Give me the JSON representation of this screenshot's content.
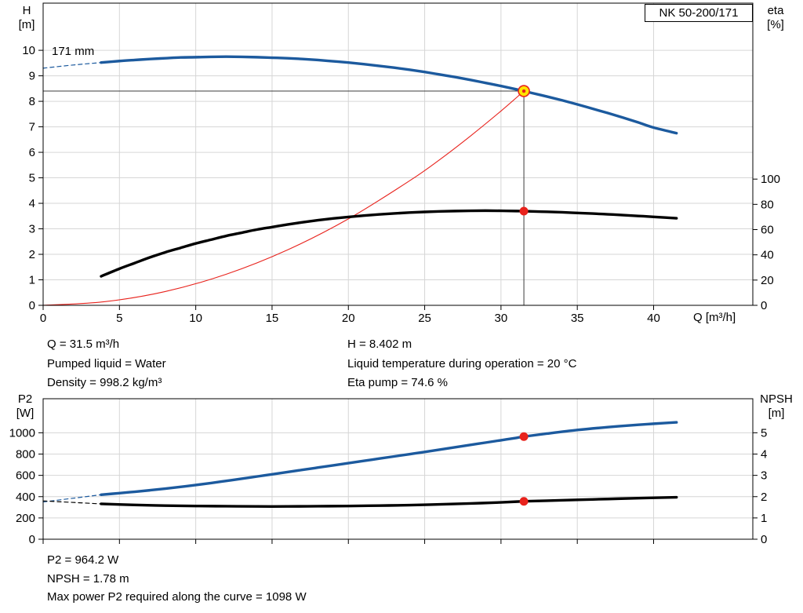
{
  "pump": {
    "model": "NK 50-200/171",
    "impeller": "171 mm"
  },
  "info_panel": {
    "q": "Q = 31.5 m³/h",
    "h": "H = 8.402 m",
    "pumped_liquid": "Pumped liquid = Water",
    "liquid_temp": "Liquid temperature during operation = 20 °C",
    "density": "Density = 998.2 kg/m³",
    "eta_pump": "Eta pump = 74.6 %"
  },
  "bottom_panel": {
    "p2": "P2 = 964.2 W",
    "npsh": "NPSH = 1.78 m",
    "max_power": "Max power P2 required along the curve = 1098 W"
  },
  "chart_data": [
    {
      "type": "line",
      "name": "qh-eta-chart",
      "title": "NK 50-200/171",
      "impeller_label": "171 mm",
      "xlabel": "Q [m³/h]",
      "ylabel_left_lines": [
        "H",
        "[m]"
      ],
      "ylabel_right_lines": [
        "eta",
        "[%]"
      ],
      "xlim": [
        0,
        46.5
      ],
      "xticks": [
        0,
        5,
        10,
        15,
        20,
        25,
        30,
        35,
        40
      ],
      "ylim": [
        0,
        11.85
      ],
      "yticks": [
        0,
        1,
        2,
        3,
        4,
        5,
        6,
        7,
        8,
        9,
        10
      ],
      "right_axis": {
        "ticks": [
          0,
          20,
          40,
          60,
          80,
          100
        ],
        "left_units_per_right_unit": 0.0495
      },
      "duty_point": {
        "q": 31.5,
        "h": 8.402,
        "eta": 74.6
      },
      "colors": {
        "head": "#1c5a9e",
        "eta": "#000000",
        "system": "#e8231d",
        "duty_fill": "#ffe400",
        "duty_stroke": "#e8231d",
        "dot": "#e8231d",
        "grid": "#d6d6d6",
        "crosshair": "#3c3c3c"
      },
      "series": [
        {
          "name": "head-curve-extension",
          "axis": "left",
          "color": "#1c5a9e",
          "width": 1.2,
          "dash": true,
          "points": [
            [
              0,
              9.3
            ],
            [
              1.9,
              9.42
            ],
            [
              3.8,
              9.52
            ]
          ]
        },
        {
          "name": "head-curve",
          "axis": "left",
          "color": "#1c5a9e",
          "width": 3.4,
          "dash": false,
          "points": [
            [
              3.8,
              9.52
            ],
            [
              5,
              9.58
            ],
            [
              6,
              9.62
            ],
            [
              7,
              9.66
            ],
            [
              8,
              9.69
            ],
            [
              9,
              9.72
            ],
            [
              10,
              9.73
            ],
            [
              11,
              9.745
            ],
            [
              12,
              9.75
            ],
            [
              13,
              9.745
            ],
            [
              14,
              9.73
            ],
            [
              15,
              9.71
            ],
            [
              16,
              9.69
            ],
            [
              17,
              9.66
            ],
            [
              18,
              9.62
            ],
            [
              19,
              9.57
            ],
            [
              20,
              9.52
            ],
            [
              21,
              9.46
            ],
            [
              22,
              9.39
            ],
            [
              23,
              9.32
            ],
            [
              24,
              9.24
            ],
            [
              25,
              9.15
            ],
            [
              26,
              9.05
            ],
            [
              27,
              8.95
            ],
            [
              28,
              8.84
            ],
            [
              29,
              8.72
            ],
            [
              30,
              8.6
            ],
            [
              31,
              8.47
            ],
            [
              31.5,
              8.402
            ],
            [
              32,
              8.33
            ],
            [
              33,
              8.19
            ],
            [
              34,
              8.04
            ],
            [
              35,
              7.88
            ],
            [
              36,
              7.71
            ],
            [
              37,
              7.54
            ],
            [
              38,
              7.36
            ],
            [
              39,
              7.17
            ],
            [
              40,
              6.97
            ],
            [
              41.5,
              6.75
            ]
          ]
        },
        {
          "name": "system-curve",
          "axis": "left",
          "color": "#e8231d",
          "width": 1.1,
          "dash": false,
          "points": [
            [
              0,
              0
            ],
            [
              4,
              0.14
            ],
            [
              8,
              0.54
            ],
            [
              12,
              1.22
            ],
            [
              16,
              2.17
            ],
            [
              20,
              3.39
            ],
            [
              24,
              4.88
            ],
            [
              26,
              5.72
            ],
            [
              28,
              6.64
            ],
            [
              30,
              7.62
            ],
            [
              31.5,
              8.402
            ]
          ]
        },
        {
          "name": "efficiency-curve",
          "axis": "right",
          "color": "#000000",
          "width": 3.4,
          "dash": false,
          "points": [
            [
              3.8,
              23
            ],
            [
              5,
              29
            ],
            [
              6,
              33.5
            ],
            [
              7,
              38
            ],
            [
              8,
              42
            ],
            [
              9,
              45.5
            ],
            [
              10,
              49
            ],
            [
              11,
              52
            ],
            [
              12,
              55
            ],
            [
              13,
              57.5
            ],
            [
              14,
              60
            ],
            [
              15,
              62
            ],
            [
              16,
              64
            ],
            [
              17,
              65.8
            ],
            [
              18,
              67.4
            ],
            [
              19,
              68.8
            ],
            [
              20,
              70
            ],
            [
              21,
              71.1
            ],
            [
              22,
              72
            ],
            [
              23,
              72.8
            ],
            [
              24,
              73.5
            ],
            [
              25,
              74
            ],
            [
              26,
              74.4
            ],
            [
              27,
              74.7
            ],
            [
              28,
              74.9
            ],
            [
              29,
              75
            ],
            [
              30,
              74.9
            ],
            [
              31,
              74.7
            ],
            [
              31.5,
              74.6
            ],
            [
              32,
              74.4
            ],
            [
              33,
              74.1
            ],
            [
              34,
              73.7
            ],
            [
              35,
              73.2
            ],
            [
              36,
              72.7
            ],
            [
              37,
              72.1
            ],
            [
              38,
              71.5
            ],
            [
              39,
              70.8
            ],
            [
              40,
              70.1
            ],
            [
              41.5,
              69
            ]
          ]
        }
      ]
    },
    {
      "type": "line",
      "name": "p2-npsh-chart",
      "title": "",
      "xlabel": "",
      "ylabel_left_lines": [
        "P2",
        "[W]"
      ],
      "ylabel_right_lines": [
        "NPSH",
        "[m]"
      ],
      "xlim": [
        0,
        46.5
      ],
      "xticks": [
        0,
        5,
        10,
        15,
        20,
        25,
        30,
        35,
        40
      ],
      "ylim": [
        0,
        1320
      ],
      "yticks": [
        0,
        200,
        400,
        600,
        800,
        1000
      ],
      "right_axis": {
        "ticks": [
          0,
          1,
          2,
          3,
          4,
          5
        ],
        "left_units_per_right_unit": 200
      },
      "duty_point": {
        "q": 31.5,
        "p2": 964.2,
        "npsh": 1.78
      },
      "colors": {
        "p2": "#1c5a9e",
        "npsh": "#000000",
        "dot": "#e8231d",
        "grid": "#d6d6d6",
        "crosshair": "#3c3c3c",
        "duty_fill": "#ffe400",
        "duty_stroke": "#e8231d"
      },
      "series": [
        {
          "name": "p2-curve-extension",
          "axis": "left",
          "color": "#1c5a9e",
          "width": 1.2,
          "dash": true,
          "points": [
            [
              0,
              350
            ],
            [
              1.9,
              384
            ],
            [
              3.8,
              418
            ]
          ]
        },
        {
          "name": "p2-curve",
          "axis": "left",
          "color": "#1c5a9e",
          "width": 3.4,
          "dash": false,
          "points": [
            [
              3.8,
              418
            ],
            [
              5,
              433
            ],
            [
              6,
              446
            ],
            [
              7,
              460
            ],
            [
              8,
              475
            ],
            [
              9,
              492
            ],
            [
              10,
              509
            ],
            [
              11,
              528
            ],
            [
              12,
              548
            ],
            [
              13,
              568
            ],
            [
              14,
              589
            ],
            [
              15,
              610
            ],
            [
              16,
              631
            ],
            [
              17,
              652
            ],
            [
              18,
              673
            ],
            [
              19,
              694
            ],
            [
              20,
              715
            ],
            [
              21,
              736
            ],
            [
              22,
              757
            ],
            [
              23,
              778
            ],
            [
              24,
              799
            ],
            [
              25,
              820
            ],
            [
              26,
              842
            ],
            [
              27,
              864
            ],
            [
              28,
              886
            ],
            [
              29,
              908
            ],
            [
              30,
              930
            ],
            [
              31,
              952
            ],
            [
              31.5,
              964.2
            ],
            [
              33,
              992
            ],
            [
              35,
              1026
            ],
            [
              37,
              1053
            ],
            [
              39,
              1075
            ],
            [
              40,
              1085
            ],
            [
              41.5,
              1098
            ]
          ]
        },
        {
          "name": "npsh-curve-extension",
          "axis": "right",
          "color": "#000000",
          "width": 1.2,
          "dash": true,
          "points": [
            [
              0,
              1.8
            ],
            [
              1.9,
              1.73
            ],
            [
              3.8,
              1.66
            ]
          ]
        },
        {
          "name": "npsh-curve",
          "axis": "right",
          "color": "#000000",
          "width": 3.4,
          "dash": false,
          "points": [
            [
              3.8,
              1.66
            ],
            [
              6,
              1.61
            ],
            [
              8,
              1.58
            ],
            [
              10,
              1.56
            ],
            [
              12,
              1.55
            ],
            [
              14,
              1.54
            ],
            [
              16,
              1.54
            ],
            [
              18,
              1.55
            ],
            [
              20,
              1.56
            ],
            [
              22,
              1.58
            ],
            [
              24,
              1.6
            ],
            [
              26,
              1.64
            ],
            [
              28,
              1.68
            ],
            [
              30,
              1.73
            ],
            [
              31.5,
              1.78
            ],
            [
              33,
              1.81
            ],
            [
              35,
              1.85
            ],
            [
              37,
              1.89
            ],
            [
              39,
              1.93
            ],
            [
              41.5,
              1.97
            ]
          ]
        }
      ]
    }
  ]
}
